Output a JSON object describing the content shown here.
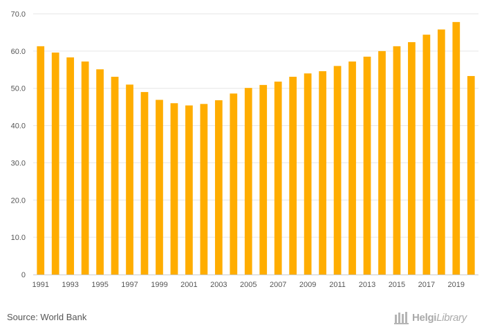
{
  "chart_data": {
    "type": "bar",
    "title": "",
    "xlabel": "",
    "ylabel": "",
    "categories": [
      "1991",
      "1992",
      "1993",
      "1994",
      "1995",
      "1996",
      "1997",
      "1998",
      "1999",
      "2000",
      "2001",
      "2002",
      "2003",
      "2004",
      "2005",
      "2006",
      "2007",
      "2008",
      "2009",
      "2010",
      "2011",
      "2012",
      "2013",
      "2014",
      "2015",
      "2016",
      "2017",
      "2018",
      "2019",
      "2020"
    ],
    "x_tick_labels": [
      "1991",
      "1993",
      "1995",
      "1997",
      "1999",
      "2001",
      "2003",
      "2005",
      "2007",
      "2009",
      "2011",
      "2013",
      "2015",
      "2017",
      "2019"
    ],
    "values": [
      61.3,
      59.6,
      58.3,
      57.2,
      55.1,
      53.1,
      51.0,
      49.0,
      46.9,
      46.0,
      45.4,
      45.8,
      46.8,
      48.6,
      50.1,
      50.9,
      51.8,
      53.1,
      54.0,
      54.6,
      56.0,
      57.2,
      58.5,
      60.0,
      61.3,
      62.4,
      64.4,
      65.8,
      67.8,
      53.3
    ],
    "ylim": [
      0,
      70
    ],
    "y_ticks": [
      "0",
      "10.0",
      "20.0",
      "30.0",
      "40.0",
      "50.0",
      "60.0",
      "70.0"
    ],
    "grid": true,
    "bar_color": "#FFAD00",
    "grid_color": "#e6e6e6"
  },
  "footer": {
    "source": "Source: World Bank",
    "brand_bold": "Helgi",
    "brand_italic": "Library"
  }
}
